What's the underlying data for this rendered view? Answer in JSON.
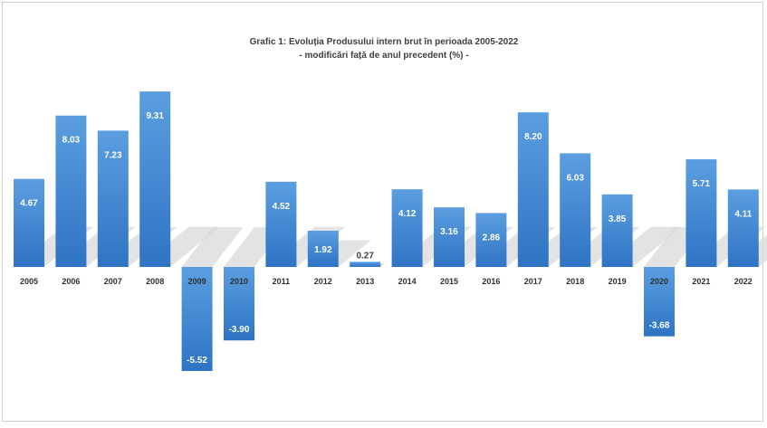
{
  "chart_data": {
    "type": "bar",
    "title": "Grafic 1: Evoluția Produsului intern brut în perioada 2005-2022",
    "subtitle": "- modificări față de anul precedent (%) -",
    "categories": [
      "2005",
      "2006",
      "2007",
      "2008",
      "2009",
      "2010",
      "2011",
      "2012",
      "2013",
      "2014",
      "2015",
      "2016",
      "2017",
      "2018",
      "2019",
      "2020",
      "2021",
      "2022"
    ],
    "values": [
      4.67,
      8.03,
      7.23,
      9.31,
      -5.52,
      -3.9,
      4.52,
      1.92,
      0.27,
      4.12,
      3.16,
      2.86,
      8.2,
      6.03,
      3.85,
      -3.68,
      5.71,
      4.11
    ],
    "value_labels": [
      "4.67",
      "8.03",
      "7.23",
      "9.31",
      "-5.52",
      "-3.90",
      "4.52",
      "1.92",
      "0.27",
      "4.12",
      "3.16",
      "2.86",
      "8.20",
      "6.03",
      "3.85",
      "-3.68",
      "5.71",
      "4.11"
    ],
    "xlabel": "",
    "ylabel": "",
    "ylim": [
      -6,
      10
    ],
    "grid": false,
    "legend": "none",
    "colors": {
      "bar_top": "#5b9ee0",
      "bar_bottom": "#2f74c4",
      "shadow": "#d9d9d9"
    }
  }
}
